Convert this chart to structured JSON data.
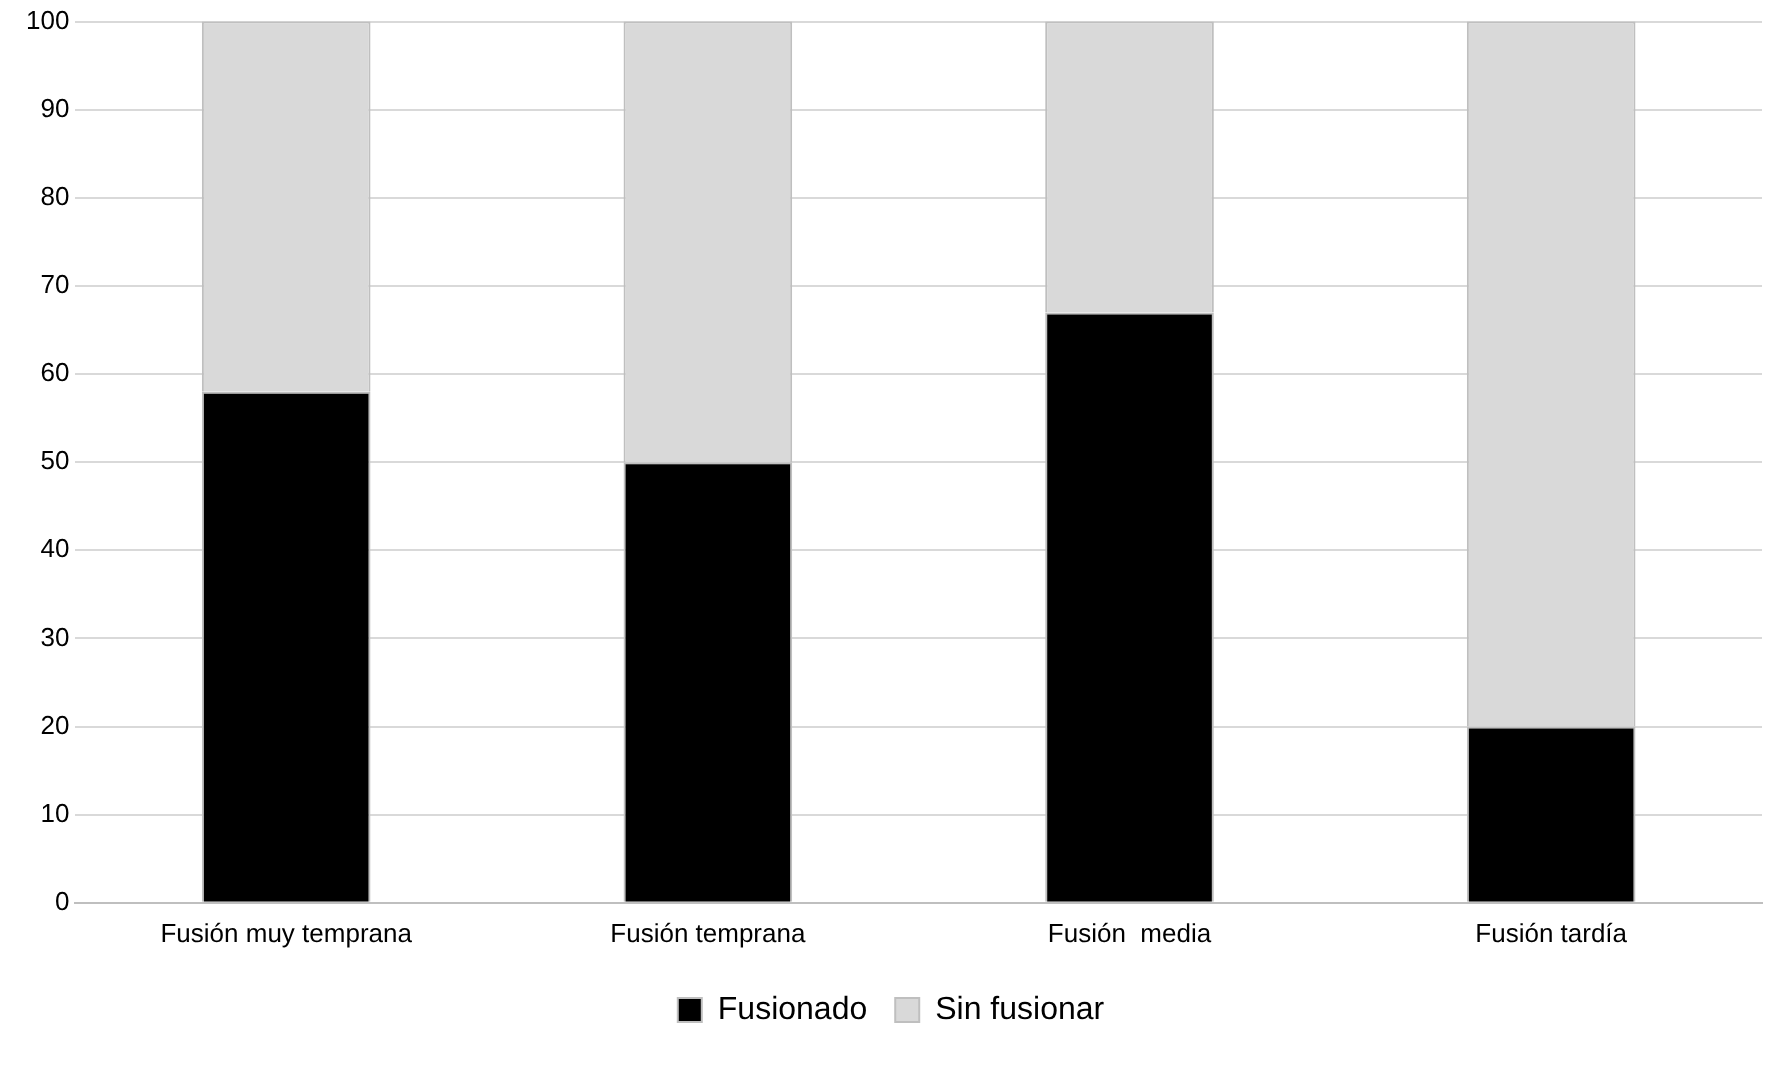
{
  "chart_data": {
    "type": "bar",
    "stacked": true,
    "categories": [
      "Fusión muy temprana",
      "Fusión temprana",
      "Fusión  media",
      "Fusión tardía"
    ],
    "series": [
      {
        "name": "Fusionado",
        "color": "#000000",
        "values": [
          58,
          50,
          67,
          20
        ]
      },
      {
        "name": "Sin fusionar",
        "color": "#d9d9d9",
        "values": [
          42,
          50,
          33,
          80
        ]
      }
    ],
    "ylim": [
      0,
      100
    ],
    "yticks": [
      0,
      10,
      20,
      30,
      40,
      50,
      60,
      70,
      80,
      90,
      100
    ],
    "grid": "y",
    "legend": "bottom"
  }
}
